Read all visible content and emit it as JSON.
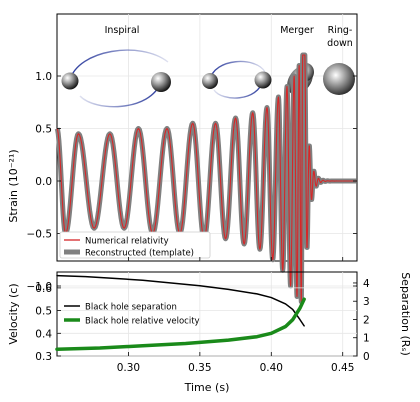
{
  "stages": {
    "inspiral": "Inspiral",
    "merger": "Merger",
    "ringdown_line1": "Ring-",
    "ringdown_line2": "down"
  },
  "chart_data": [
    {
      "type": "line",
      "ylabel": "Strain (10⁻²¹)",
      "xlim": [
        0.25,
        0.46
      ],
      "ylim": [
        -1.5,
        1.5
      ],
      "yticks": [
        -1.0,
        -0.5,
        0.0,
        0.5,
        1.0
      ],
      "ytick_labels": [
        "−1.0",
        "−0.5",
        "0.0",
        "0.5",
        "1.0"
      ],
      "legend_position": "lower-left",
      "series": [
        {
          "name": "Numerical relativity",
          "color": "#d62728"
        },
        {
          "name": "Reconstructed (template)",
          "color": "#808080"
        }
      ],
      "waveform": {
        "peak_x": [
          0.25,
          0.265,
          0.287,
          0.307,
          0.327,
          0.345,
          0.361,
          0.375,
          0.387,
          0.397,
          0.405,
          0.411,
          0.416,
          0.4195,
          0.422,
          0.4235
        ],
        "peak_y": [
          0.5,
          0.45,
          0.45,
          0.5,
          0.5,
          0.55,
          0.55,
          0.6,
          0.65,
          0.7,
          0.8,
          0.9,
          1.0,
          1.1,
          1.2,
          1.2
        ],
        "trough_x": [
          0.256,
          0.276,
          0.297,
          0.317,
          0.336,
          0.353,
          0.368,
          0.381,
          0.392,
          0.401,
          0.408,
          0.4135,
          0.418,
          0.421
        ],
        "trough_y": [
          -0.5,
          -0.45,
          -0.45,
          -0.5,
          -0.5,
          -0.55,
          -0.55,
          -0.6,
          -0.65,
          -0.75,
          -0.85,
          -1.0,
          -1.1,
          -1.15
        ],
        "ringdown_start": 0.4235,
        "ringdown_amplitude": 1.2,
        "ringdown_period": 0.0032,
        "ringdown_decay": 0.0025
      }
    },
    {
      "type": "line",
      "xlabel": "Time (s)",
      "ylabel": "Velocity (c)",
      "ylabel_right": "Separation (Rₛ)",
      "xlim": [
        0.25,
        0.46
      ],
      "ylim": [
        0.3,
        0.67
      ],
      "ylim_right": [
        0,
        4.6
      ],
      "xticks": [
        0.3,
        0.35,
        0.4,
        0.45
      ],
      "xtick_labels": [
        "0.30",
        "0.35",
        "0.40",
        "0.45"
      ],
      "yticks": [
        0.3,
        0.4,
        0.5,
        0.6
      ],
      "ytick_labels": [
        "0.3",
        "0.4",
        "0.5",
        "0.6"
      ],
      "yticks_right": [
        0,
        1,
        2,
        3,
        4
      ],
      "ytick_labels_right": [
        "0",
        "1",
        "2",
        "3",
        "4"
      ],
      "legend_position": "center-left",
      "series": [
        {
          "name": "Black hole separation",
          "axis": "right",
          "color": "#000000",
          "x": [
            0.25,
            0.27,
            0.29,
            0.31,
            0.33,
            0.35,
            0.37,
            0.39,
            0.4,
            0.41,
            0.415,
            0.42,
            0.423
          ],
          "y": [
            4.4,
            4.35,
            4.25,
            4.15,
            4.0,
            3.85,
            3.65,
            3.4,
            3.2,
            2.85,
            2.55,
            2.0,
            1.65
          ]
        },
        {
          "name": "Black hole relative velocity",
          "axis": "left",
          "color": "#1a8a1a",
          "x": [
            0.25,
            0.28,
            0.31,
            0.34,
            0.37,
            0.39,
            0.4,
            0.41,
            0.415,
            0.42,
            0.423
          ],
          "y": [
            0.33,
            0.335,
            0.345,
            0.355,
            0.37,
            0.385,
            0.4,
            0.43,
            0.46,
            0.51,
            0.55
          ]
        }
      ]
    }
  ]
}
